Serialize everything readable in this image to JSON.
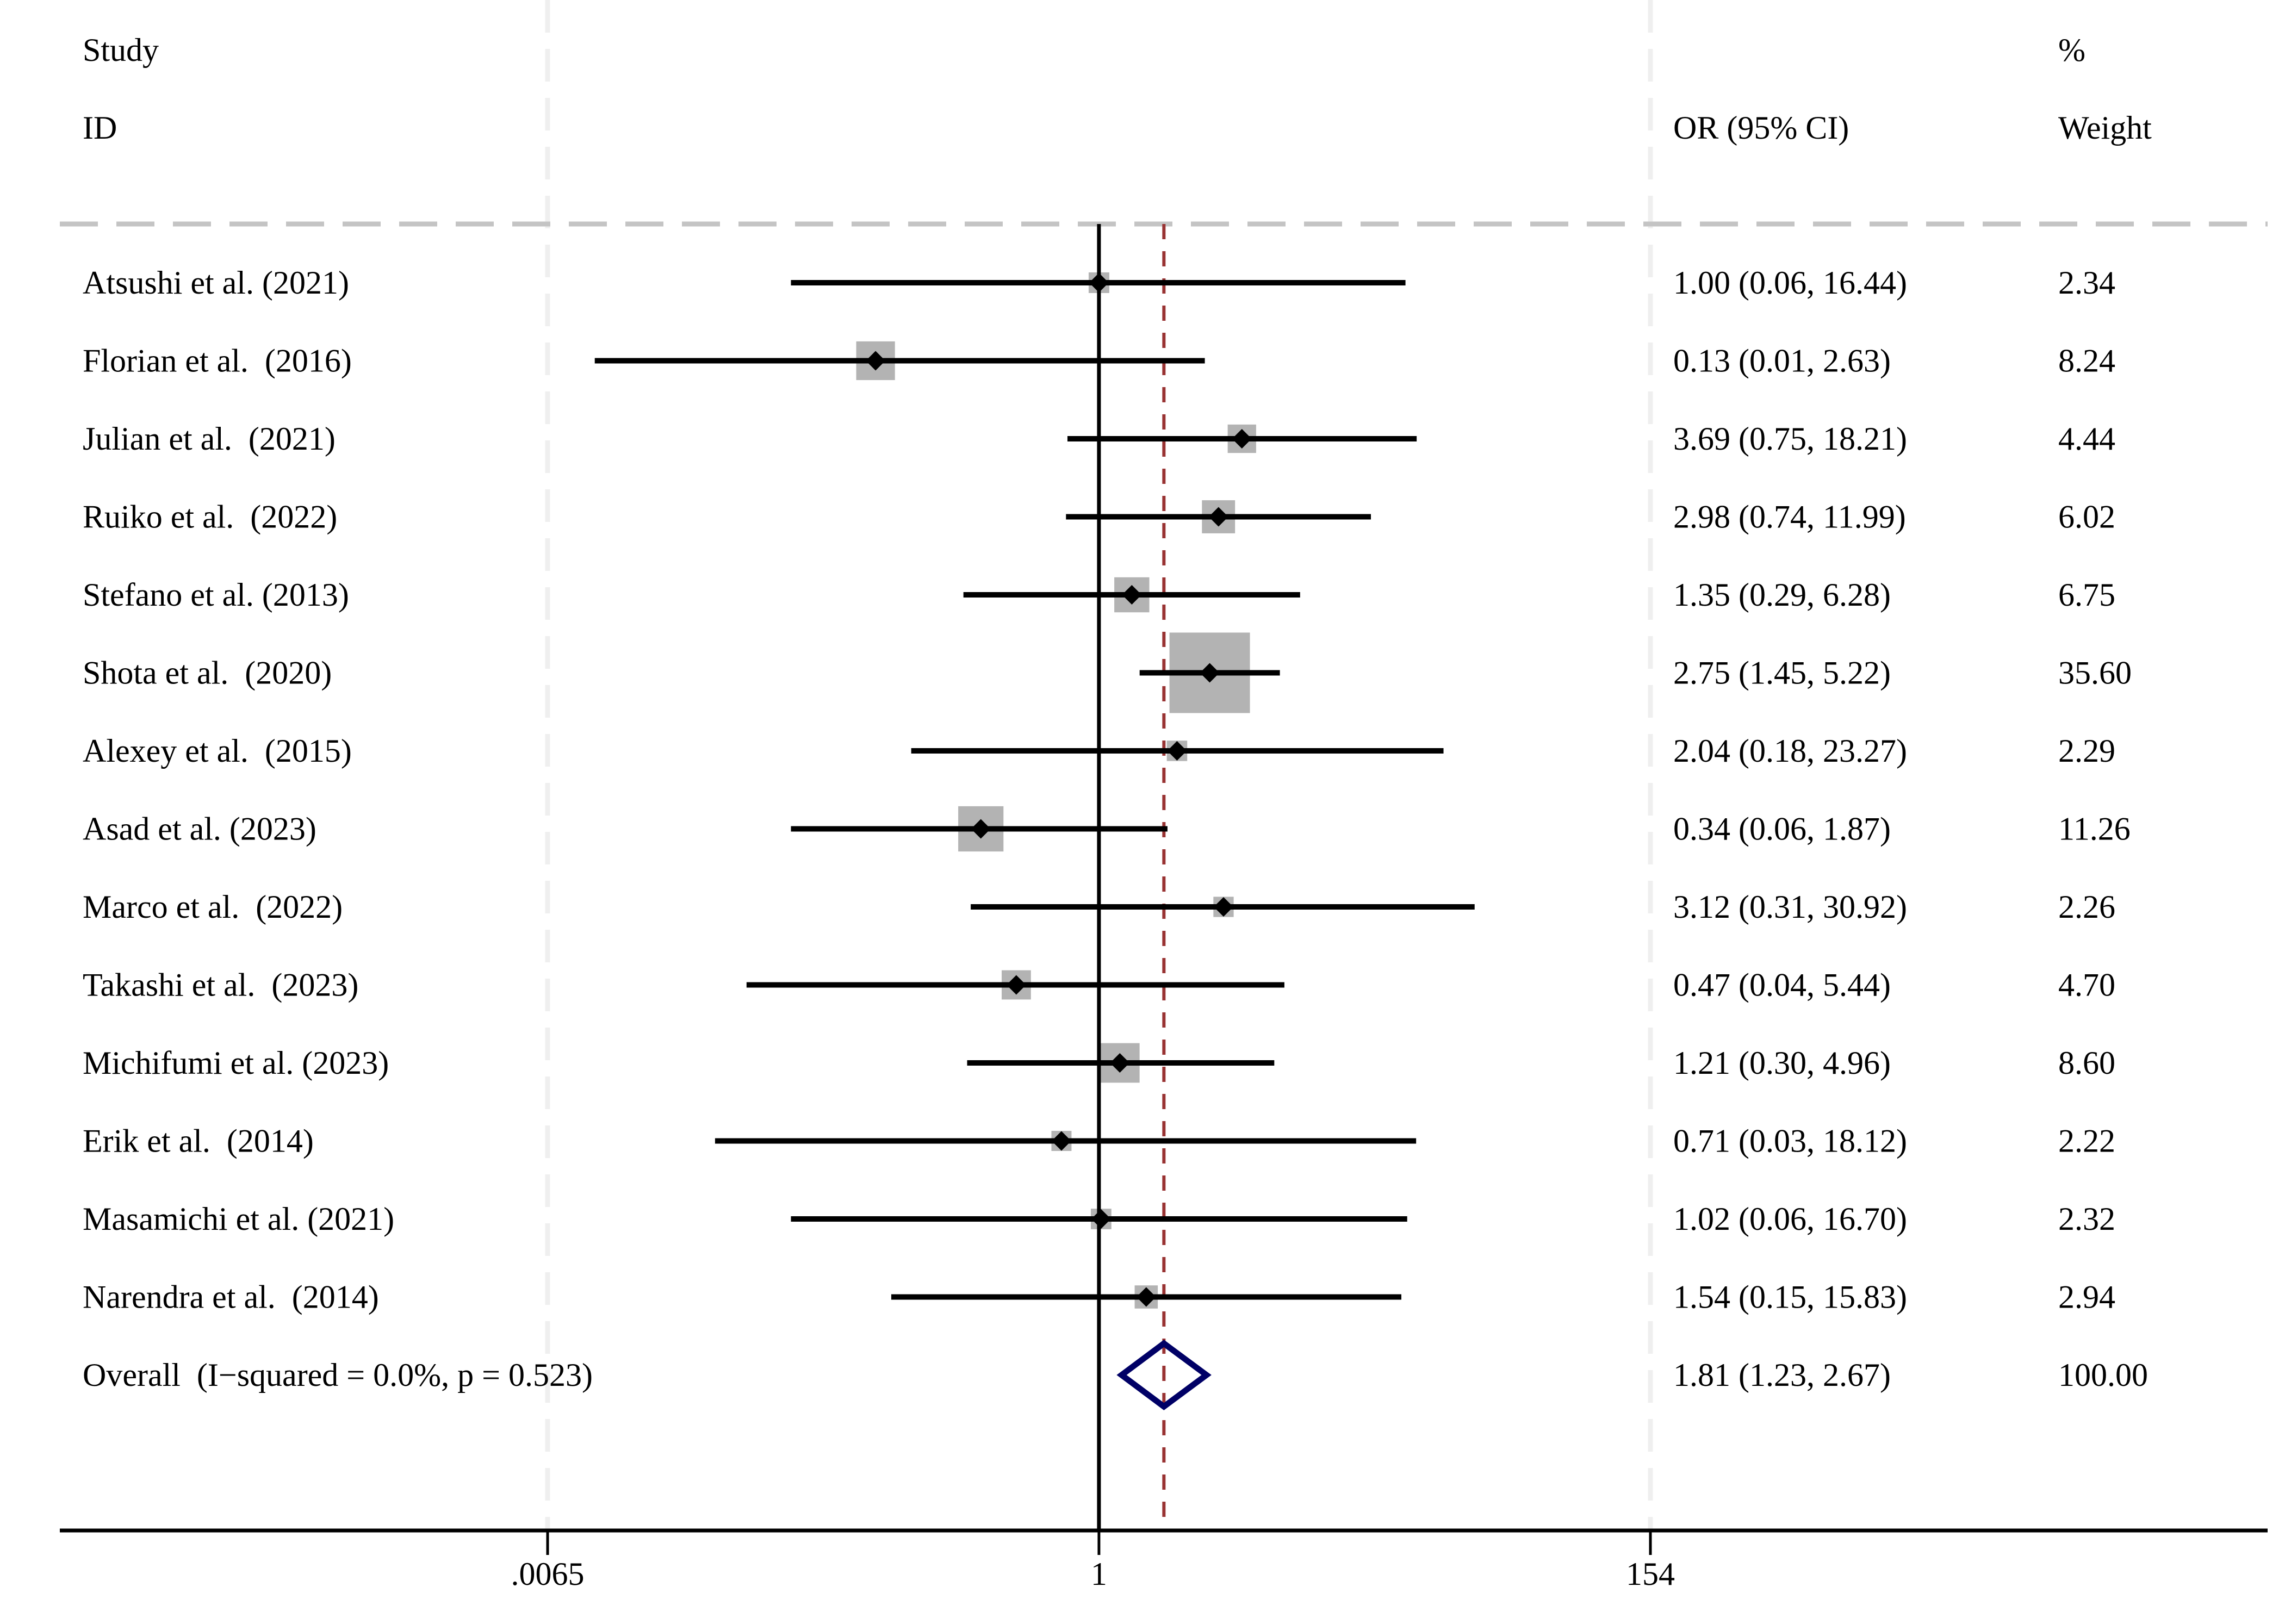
{
  "chart_data": {
    "type": "forest",
    "title": "",
    "headers": {
      "study_line1": "Study",
      "study_line2": "ID",
      "or_header": "OR (95% CI)",
      "weight_line1": "%",
      "weight_line2": "Weight"
    },
    "x_scale": "log",
    "x_ticks": [
      {
        "value": 0.0065,
        "label": ".0065"
      },
      {
        "value": 1,
        "label": "1"
      },
      {
        "value": 154,
        "label": "154"
      }
    ],
    "xlim": [
      0.0065,
      154
    ],
    "null_value": 1,
    "studies": [
      {
        "label": "Atsushi et al. (2021)",
        "or": 1.0,
        "lower": 0.06,
        "upper": 16.44,
        "or_text": "1.00 (0.06, 16.44)",
        "weight": 2.34,
        "weight_text": "2.34"
      },
      {
        "label": "Florian et al.  (2016)",
        "or": 0.13,
        "lower": 0.01,
        "upper": 2.63,
        "or_text": "0.13 (0.01, 2.63)",
        "weight": 8.24,
        "weight_text": "8.24"
      },
      {
        "label": "Julian et al.  (2021)",
        "or": 3.69,
        "lower": 0.75,
        "upper": 18.21,
        "or_text": "3.69 (0.75, 18.21)",
        "weight": 4.44,
        "weight_text": "4.44"
      },
      {
        "label": "Ruiko et al.  (2022)",
        "or": 2.98,
        "lower": 0.74,
        "upper": 11.99,
        "or_text": "2.98 (0.74, 11.99)",
        "weight": 6.02,
        "weight_text": "6.02"
      },
      {
        "label": "Stefano et al. (2013)",
        "or": 1.35,
        "lower": 0.29,
        "upper": 6.28,
        "or_text": "1.35 (0.29, 6.28)",
        "weight": 6.75,
        "weight_text": "6.75"
      },
      {
        "label": "Shota et al.  (2020)",
        "or": 2.75,
        "lower": 1.45,
        "upper": 5.22,
        "or_text": "2.75 (1.45, 5.22)",
        "weight": 35.6,
        "weight_text": "35.60"
      },
      {
        "label": "Alexey et al.  (2015)",
        "or": 2.04,
        "lower": 0.18,
        "upper": 23.27,
        "or_text": "2.04 (0.18, 23.27)",
        "weight": 2.29,
        "weight_text": "2.29"
      },
      {
        "label": "Asad et al. (2023)",
        "or": 0.34,
        "lower": 0.06,
        "upper": 1.87,
        "or_text": "0.34 (0.06, 1.87)",
        "weight": 11.26,
        "weight_text": "11.26"
      },
      {
        "label": "Marco et al.  (2022)",
        "or": 3.12,
        "lower": 0.31,
        "upper": 30.92,
        "or_text": "3.12 (0.31, 30.92)",
        "weight": 2.26,
        "weight_text": "2.26"
      },
      {
        "label": "Takashi et al.  (2023)",
        "or": 0.47,
        "lower": 0.04,
        "upper": 5.44,
        "or_text": "0.47 (0.04, 5.44)",
        "weight": 4.7,
        "weight_text": "4.70"
      },
      {
        "label": "Michifumi et al. (2023)",
        "or": 1.21,
        "lower": 0.3,
        "upper": 4.96,
        "or_text": "1.21 (0.30, 4.96)",
        "weight": 8.6,
        "weight_text": "8.60"
      },
      {
        "label": "Erik et al.  (2014)",
        "or": 0.71,
        "lower": 0.03,
        "upper": 18.12,
        "or_text": "0.71 (0.03, 18.12)",
        "weight": 2.22,
        "weight_text": "2.22"
      },
      {
        "label": "Masamichi et al. (2021)",
        "or": 1.02,
        "lower": 0.06,
        "upper": 16.7,
        "or_text": "1.02 (0.06, 16.70)",
        "weight": 2.32,
        "weight_text": "2.32"
      },
      {
        "label": "Narendra et al.  (2014)",
        "or": 1.54,
        "lower": 0.15,
        "upper": 15.83,
        "or_text": "1.54 (0.15, 15.83)",
        "weight": 2.94,
        "weight_text": "2.94"
      }
    ],
    "overall": {
      "label": "Overall  (I−squared = 0.0%, p = 0.523)",
      "or": 1.81,
      "lower": 1.23,
      "upper": 2.67,
      "or_text": "1.81 (1.23, 2.67)",
      "weight_text": "100.00"
    },
    "colors": {
      "ci_line": "#000000",
      "weight_box": "#b3b3b3",
      "point": "#000000",
      "overall_diamond": "#000066",
      "overall_ref_line": "#993333",
      "null_line": "#000000",
      "grid": "#efefef",
      "header_rule": "#c4c4c4"
    }
  }
}
